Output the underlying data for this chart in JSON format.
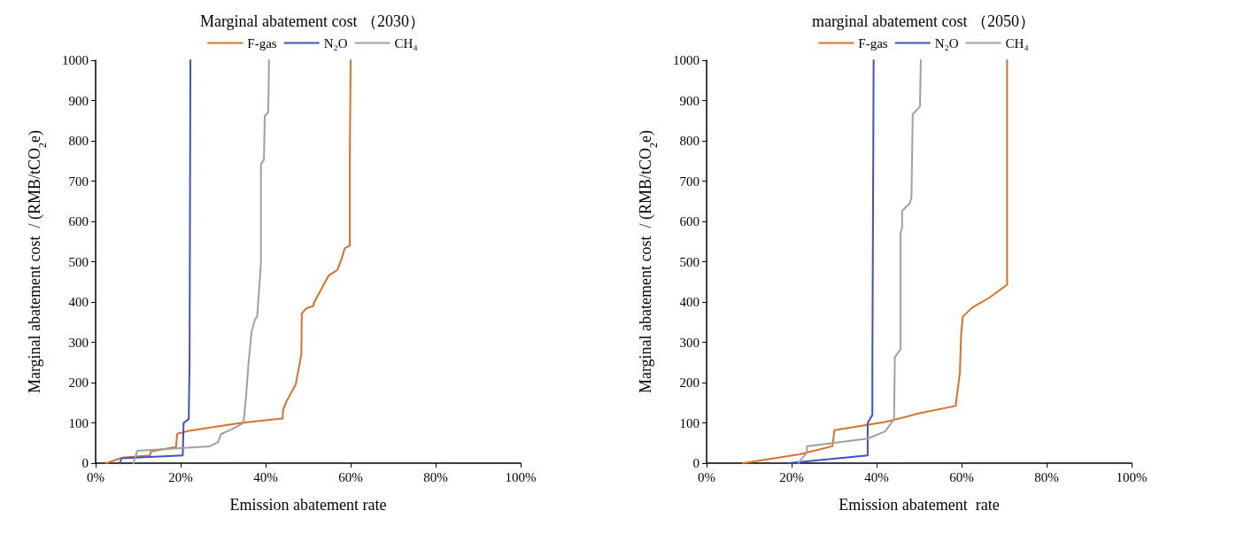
{
  "chart_data": [
    {
      "type": "line",
      "title": "Marginal abatement cost （2030）",
      "xlabel": "Emission abatement rate",
      "ylabel": "Marginal abatement cost  / (RMB/tCO$_{2}$e)",
      "legend": "top",
      "grid": false,
      "marker": "none",
      "line_style": "solid",
      "xlim": [
        0,
        100
      ],
      "xticks": [
        {
          "value": 0,
          "label": "0%"
        },
        {
          "value": 20,
          "label": "20%"
        },
        {
          "value": 40,
          "label": "40%"
        },
        {
          "value": 60,
          "label": "60%"
        },
        {
          "value": 80,
          "label": "80%"
        },
        {
          "value": 100,
          "label": "100%"
        }
      ],
      "ylim": [
        0,
        1000
      ],
      "yticks": [
        0,
        100,
        200,
        300,
        400,
        500,
        600,
        700,
        800,
        900,
        1000
      ],
      "series": [
        {
          "name": "F-gas",
          "color": "#d9712b",
          "x": [
            2.5,
            6.4,
            12.8,
            13,
            18.9,
            19.2,
            22.3,
            34.3,
            44,
            44.1,
            44.9,
            47.1,
            48.4,
            48.5,
            49.5,
            51.2,
            51.4,
            54.8,
            56.9,
            57.9,
            58.6,
            59.8,
            59.8,
            60
          ],
          "values": [
            0,
            14,
            19,
            29,
            40,
            73,
            81,
            100,
            111,
            132,
            153,
            196,
            270,
            371,
            384,
            390,
            399,
            465,
            480,
            508,
            533,
            540,
            753,
            1000
          ]
        },
        {
          "name": "N₂O",
          "color": "#3f51c6",
          "x": [
            5.7,
            6.1,
            20.5,
            20.7,
            21.9,
            22.1,
            22.3
          ],
          "values": [
            0,
            12,
            19,
            100,
            109,
            248,
            1000
          ]
        },
        {
          "name": "CH₄",
          "color": "#a0a0a0",
          "x": [
            8.9,
            9.8,
            26.9,
            28.8,
            29.5,
            32.2,
            34.8,
            35.4,
            36,
            36.7,
            37.5,
            38,
            38.7,
            38.9,
            38.9,
            39.6,
            39.8,
            40.6,
            40.8
          ],
          "values": [
            0,
            31,
            42,
            52,
            72,
            85,
            100,
            166,
            252,
            326,
            357,
            364,
            465,
            500,
            742,
            753,
            862,
            871,
            1000
          ]
        }
      ]
    },
    {
      "type": "line",
      "title": "marginal abatement cost （2050）",
      "xlabel": "Emission abatement  rate",
      "ylabel": "Marginal abatement cost  / (RMB/tCO$_{2}$e)",
      "legend": "top",
      "grid": false,
      "marker": "none",
      "line_style": "solid",
      "xlim": [
        0,
        100
      ],
      "xticks": [
        {
          "value": 0,
          "label": "0%"
        },
        {
          "value": 20,
          "label": "20%"
        },
        {
          "value": 40,
          "label": "40%"
        },
        {
          "value": 60,
          "label": "60%"
        },
        {
          "value": 80,
          "label": "80%"
        },
        {
          "value": 100,
          "label": "100%"
        }
      ],
      "ylim": [
        0,
        1000
      ],
      "yticks": [
        0,
        100,
        200,
        300,
        400,
        500,
        600,
        700,
        800,
        900,
        1000
      ],
      "series": [
        {
          "name": "F-gas",
          "color": "#d9712b",
          "x": [
            8.6,
            21.9,
            29.6,
            30.1,
            42,
            50.2,
            58.6,
            59.6,
            59.9,
            60.3,
            62.5,
            66.6,
            70.7,
            70.7
          ],
          "values": [
            0,
            22,
            42,
            82,
            102,
            124,
            142,
            225,
            323,
            364,
            386,
            411,
            443,
            1000
          ]
        },
        {
          "name": "N₂O",
          "color": "#3f51c6",
          "x": [
            19.2,
            37.9,
            37.9,
            39,
            39,
            39.3
          ],
          "values": [
            0,
            19,
            100,
            120,
            225,
            1000
          ]
        },
        {
          "name": "CH₄",
          "color": "#a0a0a0",
          "x": [
            21.6,
            23.6,
            23.6,
            37.9,
            42,
            44.1,
            44.3,
            45.6,
            45.6,
            46,
            46,
            47.8,
            48.2,
            48.5,
            50.2,
            50.4
          ],
          "values": [
            0,
            27,
            42,
            61,
            79,
            109,
            263,
            282,
            569,
            585,
            626,
            645,
            660,
            866,
            885,
            1000
          ]
        }
      ]
    }
  ]
}
